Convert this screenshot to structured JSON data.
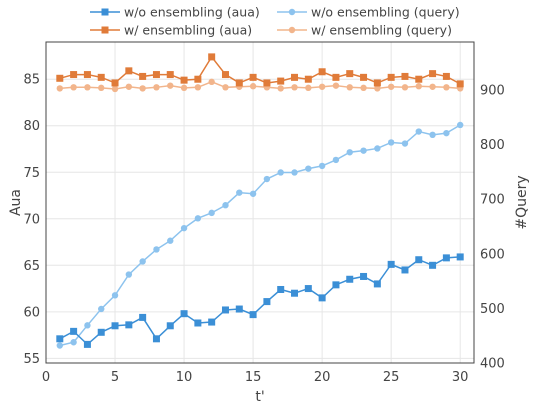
{
  "chart_data": {
    "type": "line",
    "xlabel": "t'",
    "ylabel_left": "Aua",
    "ylabel_right": "#Query",
    "x_range": [
      0,
      31
    ],
    "y_left_range": [
      54.5,
      89
    ],
    "y_right_range": [
      400,
      988
    ],
    "x_ticks": [
      0,
      5,
      10,
      15,
      20,
      25,
      30
    ],
    "y_left_ticks": [
      55,
      60,
      65,
      70,
      75,
      80,
      85
    ],
    "y_right_ticks": [
      400,
      500,
      600,
      700,
      800,
      900
    ],
    "grid": true,
    "legend_position": "top",
    "x": [
      1,
      2,
      3,
      4,
      5,
      6,
      7,
      8,
      9,
      10,
      11,
      12,
      13,
      14,
      15,
      16,
      17,
      18,
      19,
      20,
      21,
      22,
      23,
      24,
      25,
      26,
      27,
      28,
      29,
      30
    ],
    "series": [
      {
        "name": "w/o ensembling (aua)",
        "axis": "left",
        "marker": "square",
        "color": "#3b8fd6",
        "values": [
          57.1,
          57.9,
          56.5,
          57.8,
          58.5,
          58.6,
          59.4,
          57.1,
          58.5,
          59.8,
          58.8,
          58.9,
          60.2,
          60.3,
          59.7,
          61.1,
          62.4,
          62.0,
          62.5,
          61.5,
          62.9,
          63.5,
          63.8,
          63.0,
          65.1,
          64.5,
          65.6,
          65.0,
          65.8,
          65.9
        ]
      },
      {
        "name": "w/o ensembling (query)",
        "axis": "right",
        "marker": "circle",
        "color": "#8dc3ee",
        "values": [
          432,
          438,
          469,
          499,
          524,
          562,
          586,
          608,
          624,
          647,
          665,
          675,
          689,
          712,
          710,
          737,
          749,
          749,
          756,
          761,
          772,
          786,
          789,
          793,
          804,
          802,
          824,
          818,
          821,
          836
        ]
      },
      {
        "name": "w/ ensembling (aua)",
        "axis": "left",
        "marker": "square",
        "color": "#e07b39",
        "values": [
          85.1,
          85.5,
          85.5,
          85.2,
          84.6,
          85.9,
          85.3,
          85.5,
          85.5,
          84.9,
          85.0,
          87.4,
          85.5,
          84.6,
          85.2,
          84.6,
          84.8,
          85.2,
          85.0,
          85.8,
          85.2,
          85.6,
          85.2,
          84.6,
          85.2,
          85.3,
          85.0,
          85.6,
          85.3,
          84.5
        ]
      },
      {
        "name": "w/ ensembling (query)",
        "axis": "right",
        "marker": "circle",
        "color": "#f2b58c",
        "values": [
          903,
          905,
          905,
          904,
          902,
          906,
          903,
          905,
          908,
          904,
          905,
          915,
          905,
          906,
          907,
          905,
          903,
          905,
          904,
          906,
          908,
          905,
          904,
          903,
          906,
          905,
          907,
          906,
          905,
          903
        ]
      }
    ]
  }
}
